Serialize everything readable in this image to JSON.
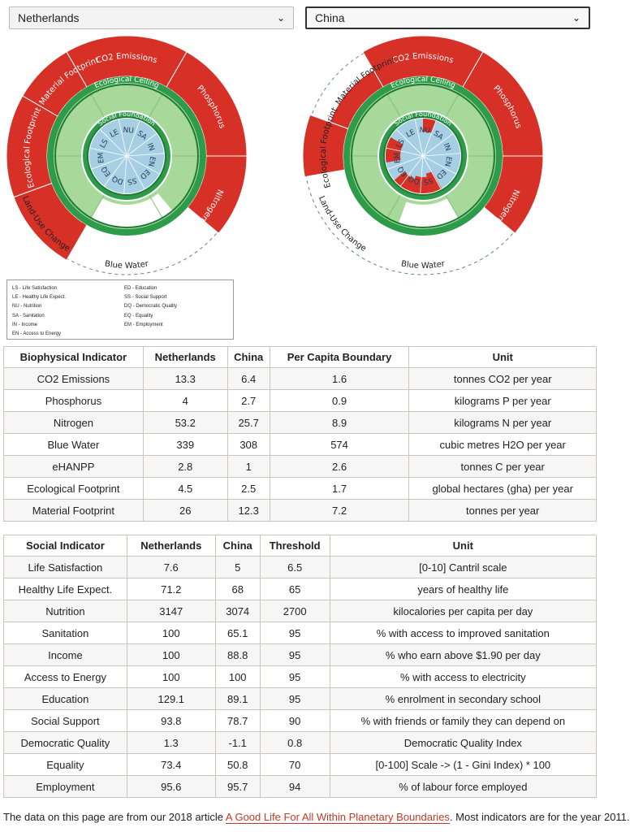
{
  "selectors": {
    "left_country": "Netherlands",
    "right_country": "China"
  },
  "chart": {
    "outer_labels": [
      "CO2 Emissions",
      "Phosphorus",
      "Nitrogen",
      "Blue Water",
      "Land-Use Change",
      "Ecological Footprint",
      "Material Footprint"
    ],
    "ceiling_label": "Ecological Ceiling",
    "foundation_label": "Social Foundation",
    "inner_labels": [
      "LE",
      "NU",
      "SA",
      "IN",
      "EN",
      "ED",
      "SS",
      "DQ",
      "EQ",
      "EM",
      "LS"
    ]
  },
  "legend": {
    "left": [
      "LS - Life Satisfaction",
      "LE - Healthy Life Expect.",
      "NU - Nutrition",
      "SA - Sanitation",
      "IN - Income",
      "EN - Access to Energy"
    ],
    "right": [
      "ED - Education",
      "SS - Social Support",
      "DQ - Democratic Quality",
      "EQ - Equality",
      "EM - Employment"
    ]
  },
  "biophysical_table": {
    "headers": [
      "Biophysical Indicator",
      "Netherlands",
      "China",
      "Per Capita Boundary",
      "Unit"
    ],
    "rows": [
      [
        "CO2 Emissions",
        "13.3",
        "6.4",
        "1.6",
        "tonnes CO2 per year"
      ],
      [
        "Phosphorus",
        "4",
        "2.7",
        "0.9",
        "kilograms P per year"
      ],
      [
        "Nitrogen",
        "53.2",
        "25.7",
        "8.9",
        "kilograms N per year"
      ],
      [
        "Blue Water",
        "339",
        "308",
        "574",
        "cubic metres H2O per year"
      ],
      [
        "eHANPP",
        "2.8",
        "1",
        "2.6",
        "tonnes C per year"
      ],
      [
        "Ecological Footprint",
        "4.5",
        "2.5",
        "1.7",
        "global hectares (gha) per year"
      ],
      [
        "Material Footprint",
        "26",
        "12.3",
        "7.2",
        "tonnes per year"
      ]
    ]
  },
  "social_table": {
    "headers": [
      "Social Indicator",
      "Netherlands",
      "China",
      "Threshold",
      "Unit"
    ],
    "rows": [
      [
        "Life Satisfaction",
        "7.6",
        "5",
        "6.5",
        "[0-10] Cantril scale"
      ],
      [
        "Healthy Life Expect.",
        "71.2",
        "68",
        "65",
        "years of healthy life"
      ],
      [
        "Nutrition",
        "3147",
        "3074",
        "2700",
        "kilocalories per capita per day"
      ],
      [
        "Sanitation",
        "100",
        "65.1",
        "95",
        "% with access to improved sanitation"
      ],
      [
        "Income",
        "100",
        "88.8",
        "95",
        "% who earn above $1.90 per day"
      ],
      [
        "Access to Energy",
        "100",
        "100",
        "95",
        "% with access to electricity"
      ],
      [
        "Education",
        "129.1",
        "89.1",
        "95",
        "% enrolment in secondary school"
      ],
      [
        "Social Support",
        "93.8",
        "78.7",
        "90",
        "% with friends or family they can depend on"
      ],
      [
        "Democratic Quality",
        "1.3",
        "-1.1",
        "0.8",
        "Democratic Quality Index"
      ],
      [
        "Equality",
        "73.4",
        "50.8",
        "70",
        "[0-100] Scale -> (1 - Gini Index) * 100"
      ],
      [
        "Employment",
        "95.6",
        "95.7",
        "94",
        "% of labour force employed"
      ]
    ]
  },
  "footer": {
    "before": "The data on this page are from our 2018 article ",
    "link": "A Good Life For All Within Planetary Boundaries",
    "after": ". Most indicators are for the year 2011."
  }
}
